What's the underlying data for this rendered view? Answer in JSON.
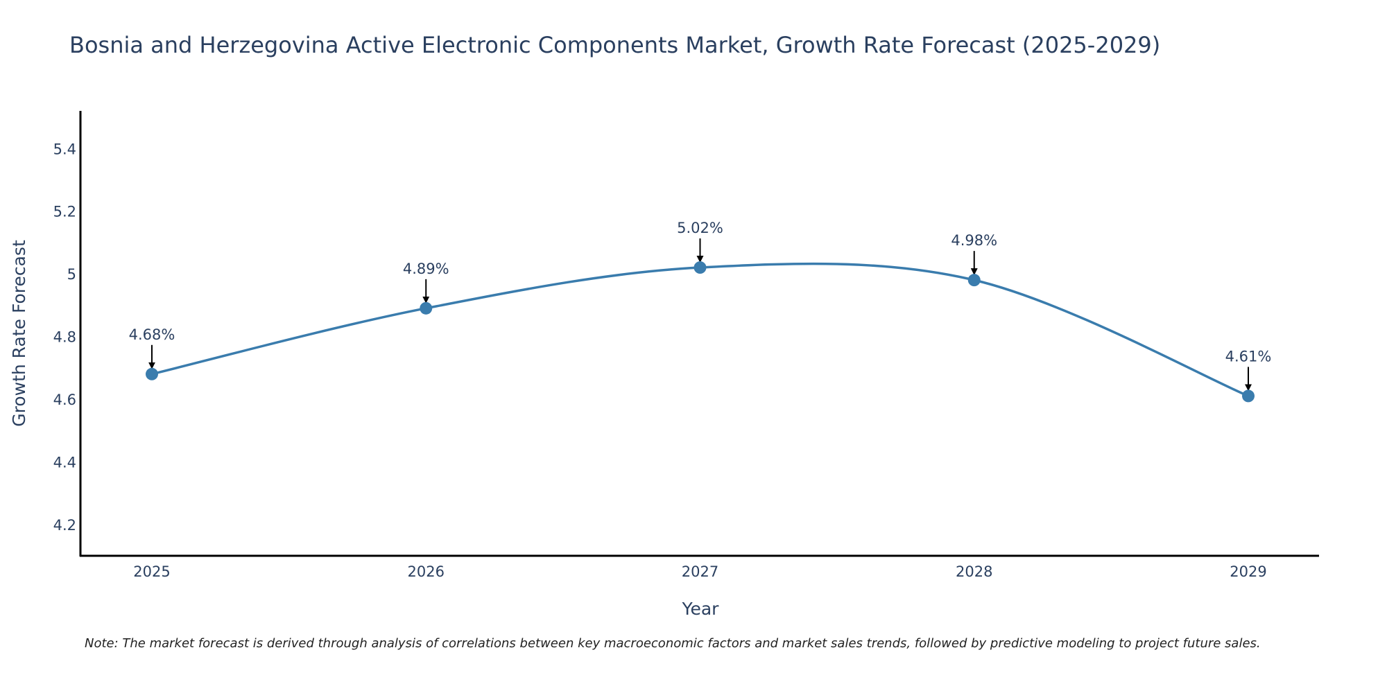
{
  "chart_data": {
    "type": "line",
    "title": "Bosnia and Herzegovina Active Electronic Components Market, Growth Rate Forecast (2025-2029)",
    "xlabel": "Year",
    "ylabel": "Growth Rate Forecast",
    "categories": [
      "2025",
      "2026",
      "2027",
      "2028",
      "2029"
    ],
    "values": [
      4.68,
      4.89,
      5.02,
      4.98,
      4.61
    ],
    "data_labels": [
      "4.68%",
      "4.89%",
      "5.02%",
      "4.98%",
      "4.61%"
    ],
    "ylim": [
      4.1,
      5.52
    ],
    "yticks": [
      4.2,
      4.4,
      4.6,
      4.8,
      5.0,
      5.2,
      5.4
    ],
    "ytick_labels": [
      "4.2",
      "4.4",
      "4.6",
      "4.8",
      "5",
      "5.2",
      "5.4"
    ],
    "grid": false,
    "line_shape": "spline",
    "annotation_arrows": true
  },
  "note": "Note: The market forecast is derived through analysis of correlations between key macroeconomic factors and market sales trends, followed by predictive modeling to project future sales.",
  "colors": {
    "series": "#3a7cad",
    "axis": "#000000",
    "text": "#2a3f5f"
  }
}
